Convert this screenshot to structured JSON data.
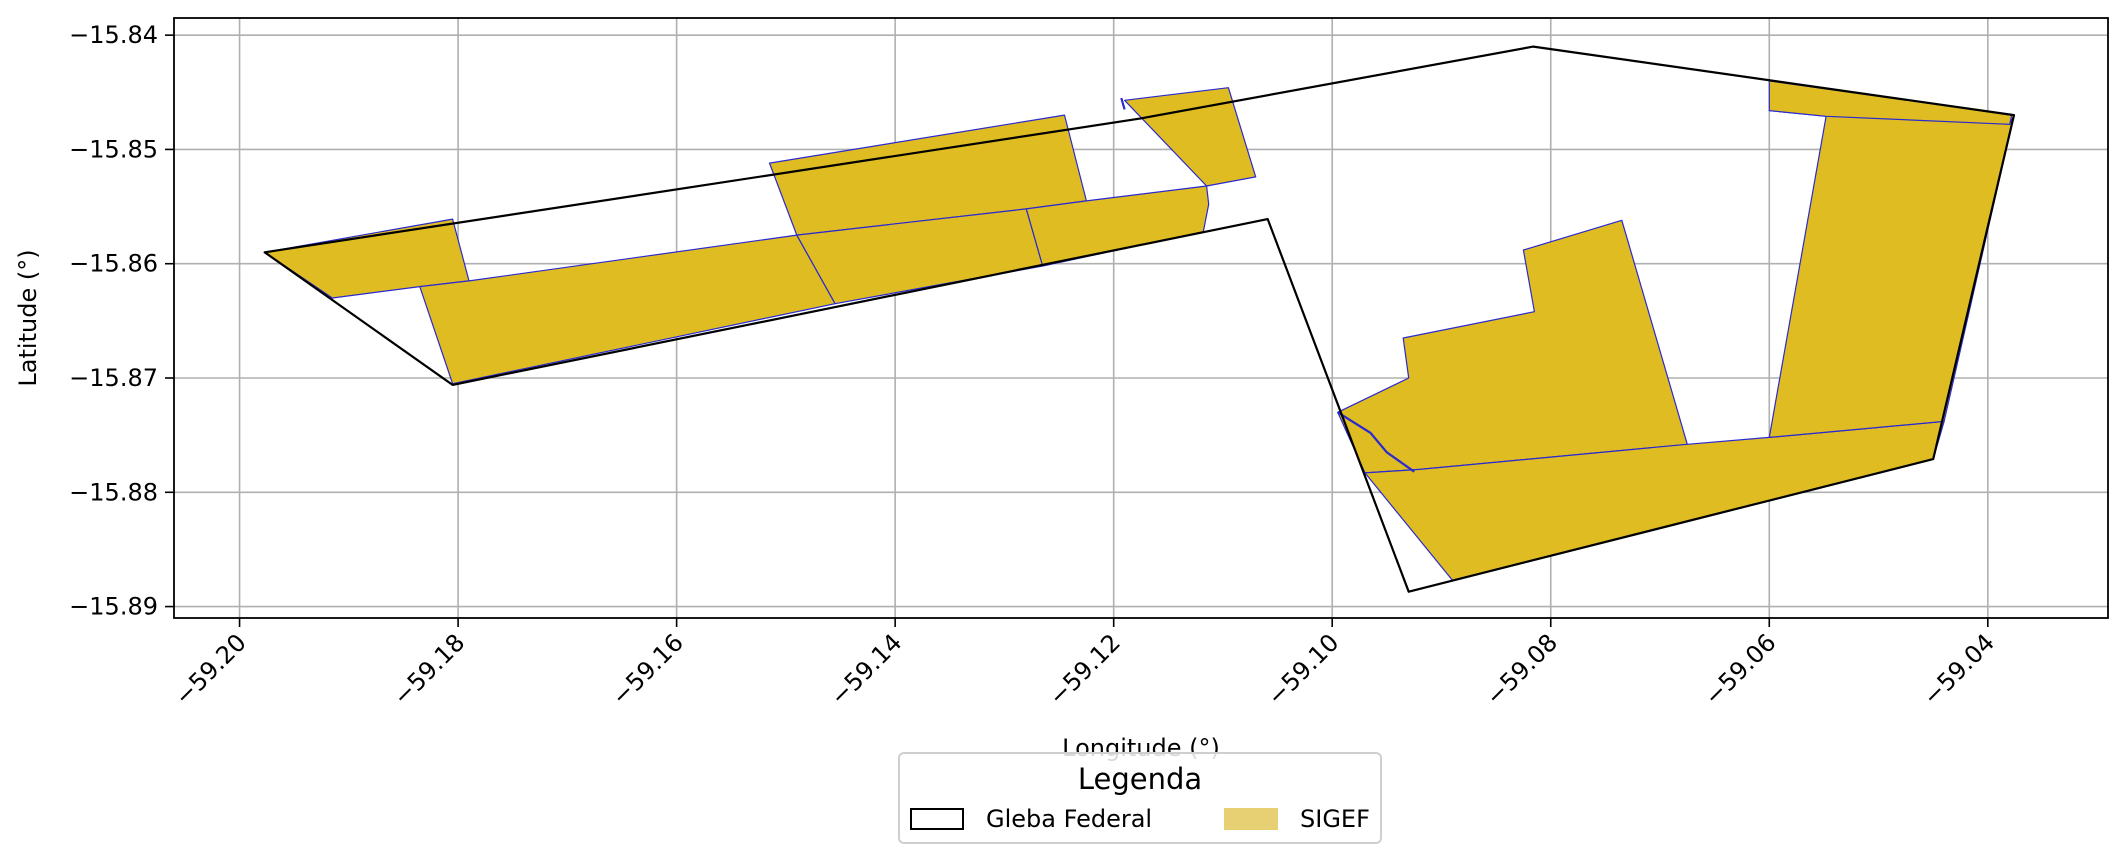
{
  "chart_data": {
    "type": "map",
    "xlabel": "Longitude (°)",
    "ylabel": "Latitude (°)",
    "xlim": [
      -59.206,
      -59.029
    ],
    "ylim": [
      -15.891,
      -15.8385
    ],
    "xticks": [
      -59.2,
      -59.18,
      -59.16,
      -59.14,
      -59.12,
      -59.1,
      -59.08,
      -59.06,
      -59.04
    ],
    "xtick_labels": [
      "−59.20",
      "−59.18",
      "−59.16",
      "−59.14",
      "−59.12",
      "−59.10",
      "−59.08",
      "−59.06",
      "−59.04"
    ],
    "yticks": [
      -15.84,
      -15.85,
      -15.86,
      -15.87,
      -15.88,
      -15.89
    ],
    "ytick_labels": [
      "−15.84",
      "−15.85",
      "−15.86",
      "−15.87",
      "−15.88",
      "−15.89"
    ],
    "grid": true,
    "legend": {
      "title": "Legenda",
      "placement": "bottom-center",
      "entries": [
        {
          "label": "Gleba Federal",
          "style": "outline",
          "color": "#000000"
        },
        {
          "label": "SIGEF",
          "style": "fill",
          "color": "#e6d073"
        }
      ]
    },
    "colors": {
      "gleba_edge": "#000000",
      "sigef_fill": "#dfbd22",
      "sigef_edge": "#2a2ad0",
      "grid": "#b0b0b0"
    },
    "gleba_federal": [
      [
        -59.1977,
        -15.859
      ],
      [
        -59.1176,
        -15.8473
      ],
      [
        -59.0816,
        -15.841
      ],
      [
        -59.0376,
        -15.847
      ],
      [
        -59.045,
        -15.8771
      ],
      [
        -59.093,
        -15.8887
      ],
      [
        -59.1059,
        -15.8561
      ],
      [
        -59.1805,
        -15.8706
      ],
      [
        -59.1977,
        -15.859
      ]
    ],
    "sigef": [
      [
        [
          -59.1977,
          -15.859
        ],
        [
          -59.1805,
          -15.8561
        ],
        [
          -59.179,
          -15.8615
        ],
        [
          -59.1835,
          -15.862
        ],
        [
          -59.1915,
          -15.863
        ]
      ],
      [
        [
          -59.1835,
          -15.862
        ],
        [
          -59.179,
          -15.8615
        ],
        [
          -59.149,
          -15.8575
        ],
        [
          -59.1455,
          -15.8635
        ],
        [
          -59.1805,
          -15.8705
        ]
      ],
      [
        [
          -59.1515,
          -15.8512
        ],
        [
          -59.1245,
          -15.847
        ],
        [
          -59.1225,
          -15.8545
        ],
        [
          -59.128,
          -15.8552
        ],
        [
          -59.149,
          -15.8575
        ]
      ],
      [
        [
          -59.149,
          -15.8575
        ],
        [
          -59.128,
          -15.8552
        ],
        [
          -59.1265,
          -15.8602
        ],
        [
          -59.1455,
          -15.8635
        ]
      ],
      [
        [
          -59.128,
          -15.8552
        ],
        [
          -59.1225,
          -15.8545
        ],
        [
          -59.1115,
          -15.8532
        ],
        [
          -59.1113,
          -15.8548
        ],
        [
          -59.1118,
          -15.8572
        ],
        [
          -59.1265,
          -15.8602
        ]
      ],
      [
        [
          -59.119,
          -15.8457
        ],
        [
          -59.1095,
          -15.8446
        ],
        [
          -59.107,
          -15.8524
        ],
        [
          -59.1115,
          -15.8532
        ]
      ],
      [
        [
          -59.0995,
          -15.873
        ],
        [
          -59.093,
          -15.87
        ],
        [
          -59.0935,
          -15.8665
        ],
        [
          -59.0815,
          -15.8642
        ],
        [
          -59.0825,
          -15.8588
        ],
        [
          -59.0735,
          -15.8562
        ],
        [
          -59.0675,
          -15.8758
        ],
        [
          -59.092,
          -15.878
        ],
        [
          -59.097,
          -15.8783
        ]
      ],
      [
        [
          -59.097,
          -15.8783
        ],
        [
          -59.092,
          -15.878
        ],
        [
          -59.0675,
          -15.8758
        ],
        [
          -59.06,
          -15.8752
        ],
        [
          -59.044,
          -15.8738
        ],
        [
          -59.045,
          -15.8771
        ],
        [
          -59.089,
          -15.8877
        ]
      ],
      [
        [
          -59.06,
          -15.8466
        ],
        [
          -59.0548,
          -15.8471
        ],
        [
          -59.06,
          -15.8752
        ],
        [
          -59.044,
          -15.8738
        ],
        [
          -59.0376,
          -15.847
        ],
        [
          -59.038,
          -15.8478
        ]
      ],
      [
        [
          -59.06,
          -15.844
        ],
        [
          -59.0378,
          -15.847
        ],
        [
          -59.038,
          -15.8478
        ],
        [
          -59.0548,
          -15.8471
        ],
        [
          -59.06,
          -15.8466
        ]
      ]
    ],
    "sigef_lines": [
      [
        [
          -59.0995,
          -15.873
        ],
        [
          -59.0965,
          -15.8748
        ],
        [
          -59.095,
          -15.8765
        ],
        [
          -59.0925,
          -15.8782
        ]
      ],
      [
        [
          -59.1193,
          -15.8455
        ],
        [
          -59.119,
          -15.8465
        ]
      ]
    ]
  }
}
